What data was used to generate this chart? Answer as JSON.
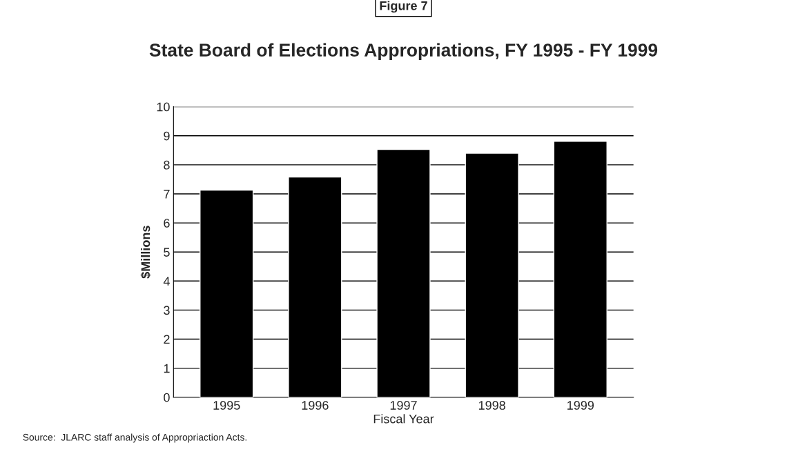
{
  "chart_data": {
    "type": "bar",
    "title": "State Board of Elections Appropriations, FY 1995 - FY 1999",
    "xlabel": "Fiscal Year",
    "ylabel": "$Millions",
    "categories": [
      "1995",
      "1996",
      "1997",
      "1998",
      "1999"
    ],
    "values": [
      7.13,
      7.58,
      8.53,
      8.4,
      8.81
    ],
    "color": "#000000",
    "ylim": [
      0,
      10
    ],
    "yticks": [
      0,
      1,
      2,
      3,
      4,
      5,
      6,
      7,
      8,
      9,
      10
    ],
    "grid": "y",
    "annotations": [
      "Figure 7",
      "Source:  JLARC staff analysis of Appropriaction Acts."
    ]
  }
}
